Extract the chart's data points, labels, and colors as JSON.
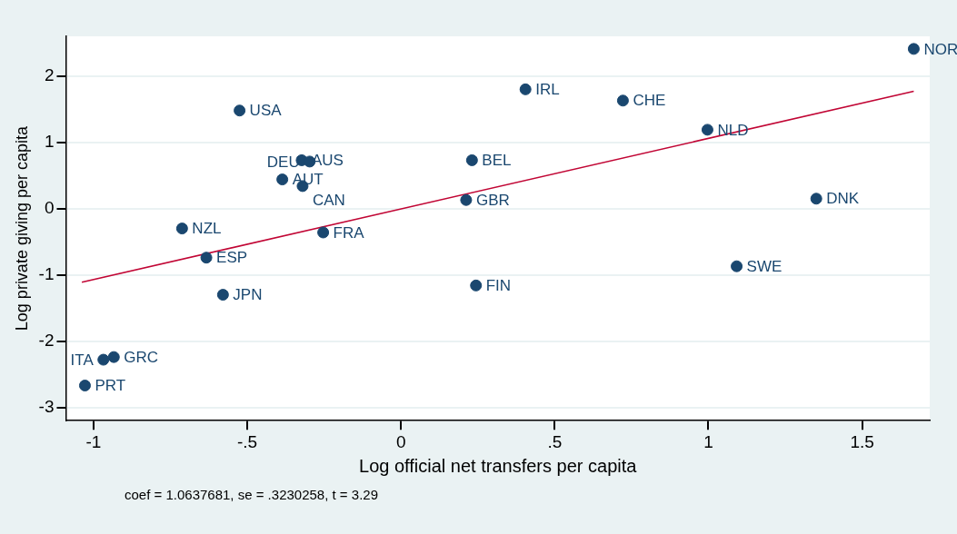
{
  "chart_data": {
    "type": "scatter",
    "xlabel": "Log official net transfers per capita",
    "ylabel": "Log private giving per capita",
    "xlim": [
      -1.09,
      1.72
    ],
    "ylim": [
      -3.2,
      2.6
    ],
    "xticks": [
      -1,
      {
        "value": -0.5,
        "label": "-.5"
      },
      0,
      {
        "value": 0.5,
        "label": ".5"
      },
      1,
      1.5
    ],
    "yticks": [
      -3,
      -2,
      -1,
      0,
      1,
      2
    ],
    "grid": "y",
    "series": [
      {
        "type": "scatter",
        "marker": "circle",
        "color": "#1a476f",
        "x": [
          1.668,
          0.405,
          0.722,
          0.997,
          -0.525,
          -0.323,
          -0.297,
          0.231,
          -0.386,
          -0.32,
          0.212,
          1.351,
          -0.712,
          -0.253,
          -0.633,
          1.092,
          0.244,
          -0.579,
          -0.934,
          -0.968,
          -1.028
        ],
        "values": [
          2.41,
          1.8,
          1.63,
          1.19,
          1.48,
          0.73,
          0.71,
          0.73,
          0.44,
          0.34,
          0.13,
          0.15,
          -0.3,
          -0.36,
          -0.74,
          -0.87,
          -1.16,
          -1.3,
          -2.24,
          -2.28,
          -2.67
        ]
      },
      {
        "type": "line",
        "marker": "none",
        "color": "#c10534",
        "x": [
          -1.038,
          1.668
        ],
        "values": [
          -1.11,
          1.77
        ]
      }
    ],
    "annotations": [
      {
        "text": "NOR",
        "x": 1.668,
        "y": 2.41
      },
      {
        "text": "IRL",
        "x": 0.405,
        "y": 1.8
      },
      {
        "text": "CHE",
        "x": 0.722,
        "y": 1.63
      },
      {
        "text": "NLD",
        "x": 0.997,
        "y": 1.19
      },
      {
        "text": "USA",
        "x": -0.525,
        "y": 1.48
      },
      {
        "text": "AUS",
        "x": -0.323,
        "y": 0.73
      },
      {
        "text": "DEU",
        "x": -0.297,
        "y": 0.71
      },
      {
        "text": "BEL",
        "x": 0.231,
        "y": 0.73
      },
      {
        "text": "AUT",
        "x": -0.386,
        "y": 0.44
      },
      {
        "text": "CAN",
        "x": -0.32,
        "y": 0.34
      },
      {
        "text": "GBR",
        "x": 0.212,
        "y": 0.13
      },
      {
        "text": "DNK",
        "x": 1.351,
        "y": 0.15
      },
      {
        "text": "NZL",
        "x": -0.712,
        "y": -0.3
      },
      {
        "text": "FRA",
        "x": -0.253,
        "y": -0.36
      },
      {
        "text": "ESP",
        "x": -0.633,
        "y": -0.74
      },
      {
        "text": "SWE",
        "x": 1.092,
        "y": -0.87
      },
      {
        "text": "FIN",
        "x": 0.244,
        "y": -1.16
      },
      {
        "text": "JPN",
        "x": -0.579,
        "y": -1.3
      },
      {
        "text": "GRC",
        "x": -0.934,
        "y": -2.24
      },
      {
        "text": "ITA",
        "x": -0.968,
        "y": -2.28
      },
      {
        "text": "PRT",
        "x": -1.028,
        "y": -2.67
      },
      "coef = 1.0637681, se = .3230258, t = 3.29"
    ]
  }
}
